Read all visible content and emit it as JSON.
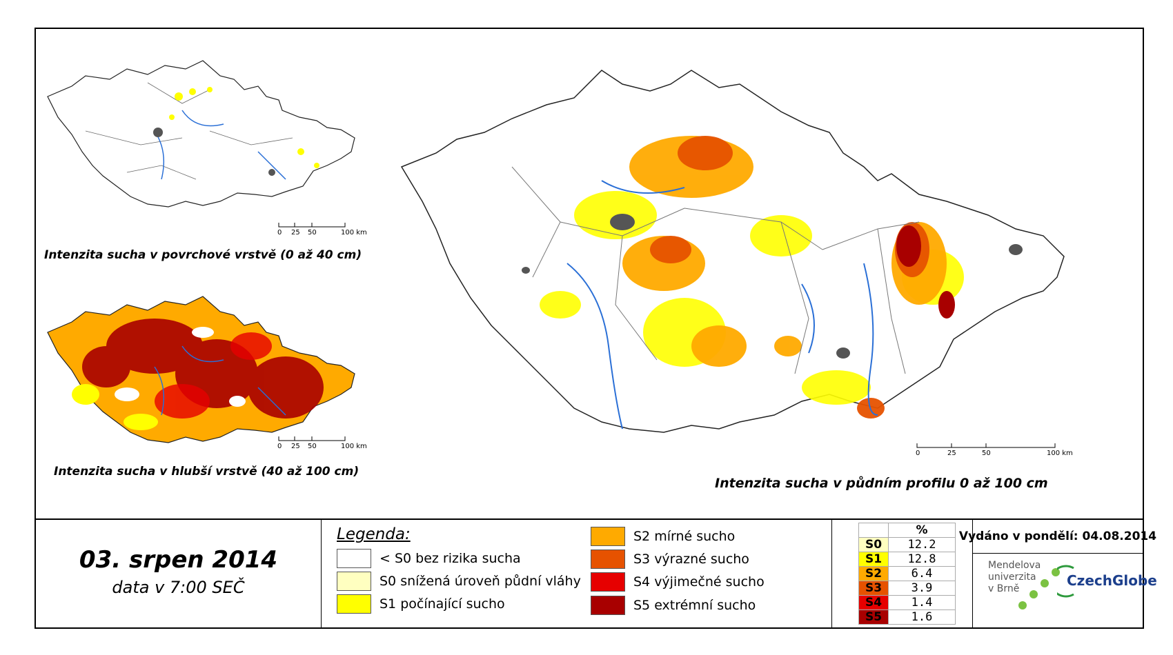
{
  "maps": {
    "surface_caption": "Intenzita sucha v povrchové vrstvě (0 až 40 cm)",
    "deep_caption": "Intenzita sucha v hlubší vrstvě (40 až 100 cm)",
    "profile_caption": "Intenzita sucha v půdním profilu 0 až 100 cm",
    "scale_labels": [
      "0",
      "25",
      "50",
      "100 km"
    ]
  },
  "date": {
    "main": "03. srpen 2014",
    "sub": "data v 7:00 SEČ"
  },
  "legend": {
    "title": "Legenda:",
    "items": [
      {
        "label": "< S0 bez rizika sucha",
        "color": "#ffffff"
      },
      {
        "label": "S0 snížená úroveň půdní vláhy",
        "color": "#ffffc0"
      },
      {
        "label": "S1 počínající sucho",
        "color": "#ffff00"
      },
      {
        "label": "S2 mírné sucho",
        "color": "#ffaa00"
      },
      {
        "label": "S3 výrazné sucho",
        "color": "#e65200"
      },
      {
        "label": "S4 výjimečné sucho",
        "color": "#e60000"
      },
      {
        "label": "S5 extrémní sucho",
        "color": "#a80000"
      }
    ]
  },
  "percentages": {
    "header": "%",
    "rows": [
      {
        "code": "S0",
        "value": "12.2",
        "color": "#ffffc0"
      },
      {
        "code": "S1",
        "value": "12.8",
        "color": "#ffff00"
      },
      {
        "code": "S2",
        "value": "6.4",
        "color": "#ffaa00"
      },
      {
        "code": "S3",
        "value": "3.9",
        "color": "#e65200"
      },
      {
        "code": "S4",
        "value": "1.4",
        "color": "#e60000"
      },
      {
        "code": "S5",
        "value": "1.6",
        "color": "#a80000"
      }
    ]
  },
  "issue": {
    "text": "Vydáno v pondělí: 04.08.2014"
  },
  "logos": {
    "mendel_lines": [
      "Mendelova",
      "univerzita",
      "v Brně"
    ],
    "czechglobe": "CzechGlobe"
  }
}
